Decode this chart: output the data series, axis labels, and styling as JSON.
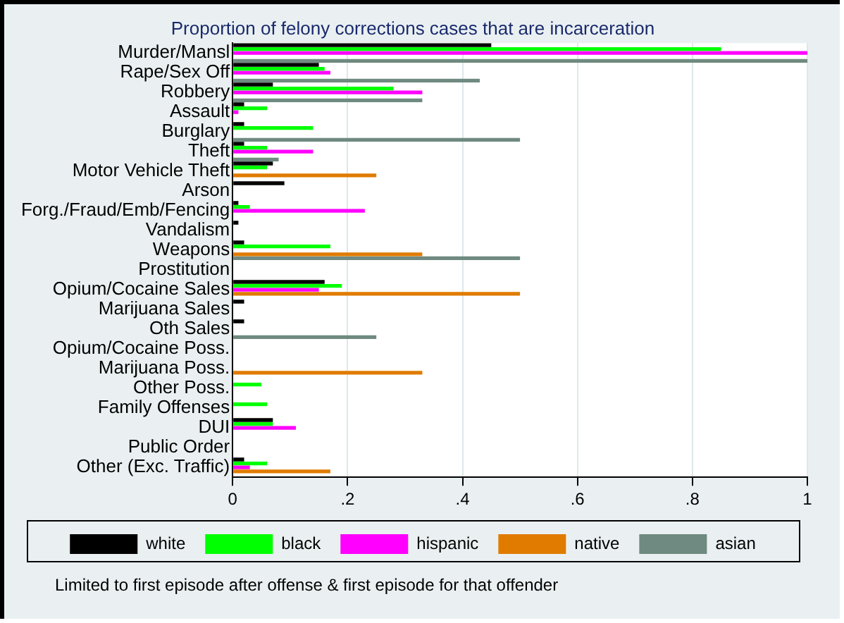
{
  "chart_data": {
    "type": "bar",
    "orientation": "horizontal",
    "title": "Proportion of felony corrections cases that are incarceration",
    "categories": [
      "Murder/Mansl",
      "Rape/Sex Off",
      "Robbery",
      "Assault",
      "Burglary",
      "Theft",
      "Motor Vehicle Theft",
      "Arson",
      "Forg./Fraud/Emb/Fencing",
      "Vandalism",
      "Weapons",
      "Prostitution",
      "Opium/Cocaine Sales",
      "Marijuana Sales",
      "Oth Sales",
      "Opium/Cocaine Poss.",
      "Marijuana Poss.",
      "Other Poss.",
      "Family Offenses",
      "DUI",
      "Public Order",
      "Other (Exc. Traffic)"
    ],
    "series": [
      {
        "name": "white",
        "color": "#000000",
        "values": [
          0.45,
          0.15,
          0.07,
          0.02,
          0.02,
          0.02,
          0.07,
          0.09,
          0.01,
          0.01,
          0.02,
          null,
          0.16,
          0.02,
          0.02,
          null,
          null,
          null,
          null,
          0.07,
          null,
          0.02
        ]
      },
      {
        "name": "black",
        "color": "#00ff00",
        "values": [
          0.85,
          0.16,
          0.28,
          0.06,
          0.14,
          0.06,
          0.06,
          null,
          0.03,
          null,
          0.17,
          null,
          0.19,
          null,
          null,
          null,
          null,
          0.05,
          0.06,
          0.07,
          null,
          0.06
        ]
      },
      {
        "name": "hispanic",
        "color": "#ff00ff",
        "values": [
          1,
          0.17,
          0.33,
          0.01,
          null,
          0.14,
          null,
          null,
          0.23,
          null,
          null,
          null,
          0.15,
          null,
          null,
          null,
          null,
          null,
          null,
          0.11,
          null,
          0.03
        ]
      },
      {
        "name": "native",
        "color": "#e07b00",
        "values": [
          null,
          null,
          null,
          null,
          null,
          null,
          0.25,
          null,
          null,
          null,
          0.33,
          null,
          0.5,
          null,
          null,
          null,
          0.33,
          null,
          null,
          null,
          null,
          0.17
        ]
      },
      {
        "name": "asian",
        "color": "#6f8a80",
        "values": [
          1,
          0.43,
          0.33,
          null,
          0.5,
          0.08,
          null,
          null,
          null,
          null,
          0.5,
          null,
          null,
          null,
          0.25,
          null,
          null,
          null,
          null,
          null,
          null,
          null
        ]
      }
    ],
    "xlim": [
      0,
      1
    ],
    "xticks": [
      0,
      {
        "value": 0.2,
        "label": ".2"
      },
      {
        "value": 0.4,
        "label": ".4"
      },
      {
        "value": 0.6,
        "label": ".6"
      },
      {
        "value": 0.8,
        "label": ".8"
      },
      1
    ],
    "grid": "x",
    "legend": "bottom",
    "annotations": [
      "Limited to first episode after offense & first episode for that offender"
    ]
  }
}
